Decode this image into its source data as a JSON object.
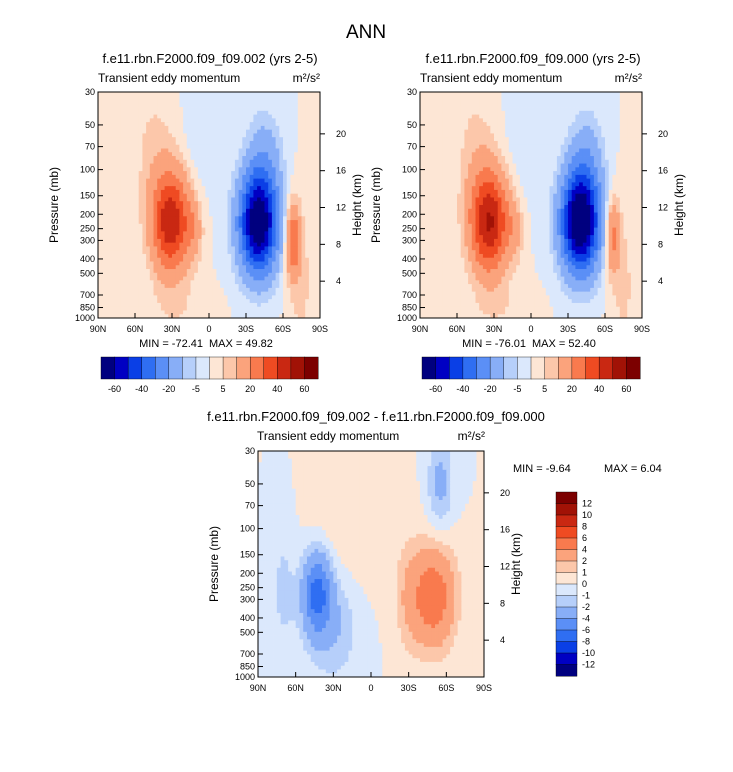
{
  "page_title": "ANN",
  "colors": {
    "scale": [
      "#00007f",
      "#0000c3",
      "#0a3fe6",
      "#2f6ef2",
      "#5b8ff6",
      "#88aef7",
      "#b6cffa",
      "#dbe8fc",
      "#fde6d5",
      "#fcc7aa",
      "#fba37c",
      "#f97a4e",
      "#ef4b22",
      "#c92812",
      "#a11206",
      "#7c0000"
    ]
  },
  "chart_data": [
    {
      "type": "heatmap",
      "title": "f.e11.rbn.F2000.f09_f09.002 (yrs 2-5)",
      "subtitle": "Transient eddy momentum",
      "units": "m²/s²",
      "xlabel": "",
      "ylabel": "Pressure (mb)",
      "ylabel_right": "Height (km)",
      "x_ticks": [
        "90N",
        "60N",
        "30N",
        "0",
        "30S",
        "60S",
        "90S"
      ],
      "x_values": [
        90,
        60,
        30,
        0,
        -30,
        -60,
        -90
      ],
      "y_ticks": [
        30,
        50,
        70,
        100,
        150,
        200,
        250,
        300,
        400,
        500,
        700,
        850,
        1000
      ],
      "y_scale": "log",
      "ylim": [
        1000,
        30
      ],
      "height_ticks": [
        4,
        8,
        12,
        16,
        20
      ],
      "min_text": "MIN = -72.41",
      "max_text": "MAX = 49.82",
      "min": -72.41,
      "max": 49.82,
      "features": [
        {
          "lat": 31,
          "p": 225,
          "amp": 48,
          "wlat": 11,
          "wp": 0.55
        },
        {
          "lat": 12,
          "p": 250,
          "amp": 10,
          "wlat": 5,
          "wp": 0.35
        },
        {
          "lat": -40,
          "p": 230,
          "amp": -72,
          "wlat": 11,
          "wp": 0.55
        },
        {
          "lat": -68,
          "p": 300,
          "amp": 30,
          "wlat": 4,
          "wp": 0.4
        },
        {
          "lat": -45,
          "p": 80,
          "amp": -12,
          "wlat": 10,
          "wp": 0.5
        },
        {
          "lat": 45,
          "p": 70,
          "amp": 6,
          "wlat": 12,
          "wp": 0.7
        },
        {
          "lat": 8,
          "p": 60,
          "amp": -4,
          "wlat": 9,
          "wp": 0.8
        },
        {
          "lat": -75,
          "p": 600,
          "amp": 6,
          "wlat": 8,
          "wp": 1.0
        },
        {
          "lat": 25,
          "p": 900,
          "amp": 4,
          "wlat": 20,
          "wp": 0.3
        }
      ]
    },
    {
      "type": "heatmap",
      "title": "f.e11.rbn.F2000.f09_f09.000 (yrs 2-5)",
      "subtitle": "Transient eddy momentum",
      "units": "m²/s²",
      "xlabel": "",
      "ylabel": "Pressure (mb)",
      "ylabel_right": "Height (km)",
      "x_ticks": [
        "90N",
        "60N",
        "30N",
        "0",
        "30S",
        "60S",
        "90S"
      ],
      "x_values": [
        90,
        60,
        30,
        0,
        -30,
        -60,
        -90
      ],
      "y_ticks": [
        30,
        50,
        70,
        100,
        150,
        200,
        250,
        300,
        400,
        500,
        700,
        850,
        1000
      ],
      "y_scale": "log",
      "ylim": [
        1000,
        30
      ],
      "height_ticks": [
        4,
        8,
        12,
        16,
        20
      ],
      "min_text": "MIN = -76.01",
      "max_text": "MAX = 52.40",
      "min": -76.01,
      "max": 52.4,
      "features": [
        {
          "lat": 34,
          "p": 225,
          "amp": 51,
          "wlat": 11,
          "wp": 0.55
        },
        {
          "lat": 13,
          "p": 250,
          "amp": 9,
          "wlat": 5,
          "wp": 0.35
        },
        {
          "lat": -40,
          "p": 225,
          "amp": -76,
          "wlat": 11,
          "wp": 0.55
        },
        {
          "lat": -66,
          "p": 280,
          "amp": 24,
          "wlat": 4,
          "wp": 0.4
        },
        {
          "lat": -45,
          "p": 80,
          "amp": -12,
          "wlat": 10,
          "wp": 0.5
        },
        {
          "lat": 45,
          "p": 70,
          "amp": 6,
          "wlat": 12,
          "wp": 0.7
        },
        {
          "lat": 8,
          "p": 60,
          "amp": -4,
          "wlat": 9,
          "wp": 0.8
        },
        {
          "lat": -75,
          "p": 600,
          "amp": 6,
          "wlat": 8,
          "wp": 1.0
        },
        {
          "lat": 25,
          "p": 900,
          "amp": 4,
          "wlat": 20,
          "wp": 0.3
        }
      ]
    },
    {
      "type": "heatmap",
      "title": "f.e11.rbn.F2000.f09_f09.002 - f.e11.rbn.F2000.f09_f09.000",
      "subtitle": "Transient eddy momentum",
      "units": "m²/s²",
      "xlabel": "",
      "ylabel": "Pressure (mb)",
      "ylabel_right": "Height (km)",
      "x_ticks": [
        "90N",
        "60N",
        "30N",
        "0",
        "30S",
        "60S",
        "90S"
      ],
      "x_values": [
        90,
        60,
        30,
        0,
        -30,
        -60,
        -90
      ],
      "y_ticks": [
        30,
        50,
        70,
        100,
        150,
        200,
        250,
        300,
        400,
        500,
        700,
        850,
        1000
      ],
      "y_scale": "log",
      "ylim": [
        1000,
        30
      ],
      "height_ticks": [
        4,
        8,
        12,
        16,
        20
      ],
      "min_text": "MIN = -9.64",
      "max_text": "MAX =  6.04",
      "min": -9.64,
      "max": 6.04,
      "features": [
        {
          "lat": 43,
          "p": 270,
          "amp": -6.5,
          "wlat": 8,
          "wp": 0.45
        },
        {
          "lat": 30,
          "p": 450,
          "amp": -2,
          "wlat": 14,
          "wp": 0.6
        },
        {
          "lat": -50,
          "p": 290,
          "amp": 5.5,
          "wlat": 12,
          "wp": 0.55
        },
        {
          "lat": -30,
          "p": 300,
          "amp": 1.5,
          "wlat": 8,
          "wp": 0.6
        },
        {
          "lat": -55,
          "p": 50,
          "amp": -2.5,
          "wlat": 7,
          "wp": 0.5
        },
        {
          "lat": 70,
          "p": 250,
          "amp": -1.2,
          "wlat": 8,
          "wp": 0.9
        },
        {
          "lat": 15,
          "p": 80,
          "amp": 1.0,
          "wlat": 25,
          "wp": 0.8
        }
      ]
    }
  ],
  "colorbars": [
    {
      "orientation": "horizontal",
      "labels": [
        "-60",
        "-40",
        "-20",
        "-5",
        "5",
        "20",
        "40",
        "60"
      ]
    },
    {
      "orientation": "horizontal",
      "labels": [
        "-60",
        "-40",
        "-20",
        "-5",
        "5",
        "20",
        "40",
        "60"
      ]
    },
    {
      "orientation": "vertical",
      "labels": [
        "12",
        "10",
        "8",
        "6",
        "4",
        "2",
        "1",
        "0",
        "-1",
        "-2",
        "-4",
        "-6",
        "-8",
        "-10",
        "-12"
      ]
    }
  ]
}
